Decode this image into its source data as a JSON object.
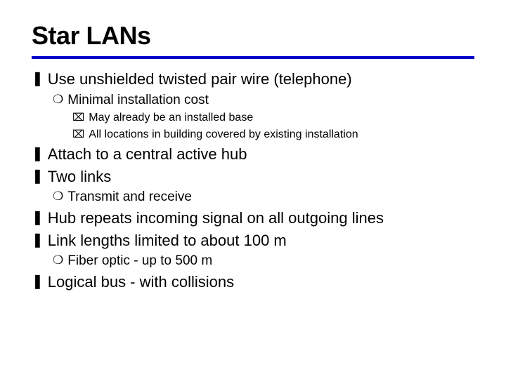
{
  "title": "Star LANs",
  "colors": {
    "rule": "#0000cc",
    "text": "#000000",
    "background": "#ffffff"
  },
  "typography": {
    "title_fontsize": 36,
    "title_weight": 900,
    "z_fontsize": 22,
    "y_fontsize": 19,
    "x_fontsize": 16,
    "font_family": "Verdana"
  },
  "bullets": {
    "z": "❚",
    "y": "❍",
    "x": "⌧"
  },
  "items": [
    {
      "level": "z",
      "text": "Use unshielded twisted pair wire (telephone)"
    },
    {
      "level": "y",
      "text": "Minimal installation cost"
    },
    {
      "level": "x",
      "text": "May already be an installed base"
    },
    {
      "level": "x",
      "text": "All locations in building covered by existing installation"
    },
    {
      "level": "z",
      "text": "Attach to a central active hub"
    },
    {
      "level": "z",
      "text": "Two links"
    },
    {
      "level": "y",
      "text": "Transmit and receive"
    },
    {
      "level": "z",
      "text": "Hub repeats incoming signal on all outgoing lines"
    },
    {
      "level": "z",
      "text": "Link lengths limited to about 100 m"
    },
    {
      "level": "y",
      "text": "Fiber optic - up to 500 m"
    },
    {
      "level": "z",
      "text": "Logical bus - with collisions"
    }
  ]
}
